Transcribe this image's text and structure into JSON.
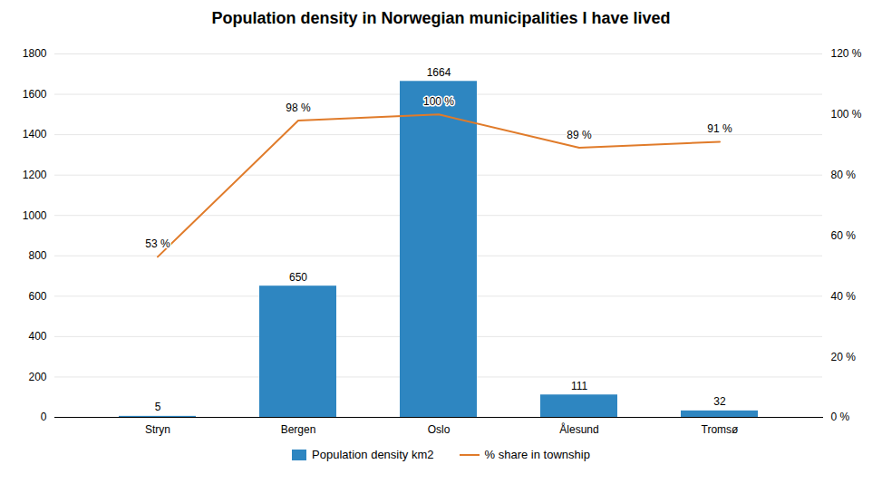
{
  "chart_data": {
    "type": "bar",
    "title": "Population density in Norwegian municipalities I have lived",
    "categories": [
      "Stryn",
      "Bergen",
      "Oslo",
      "Ålesund",
      "Tromsø"
    ],
    "series": [
      {
        "name": "Population density km2",
        "type": "bar",
        "color": "#2e86c1",
        "values": [
          5,
          650,
          1664,
          111,
          32
        ]
      },
      {
        "name": "% share in township",
        "type": "line",
        "color": "#e07b2a",
        "axis": "y2",
        "values": [
          53,
          98,
          100,
          89,
          91
        ],
        "value_labels": [
          "53 %",
          "98 %",
          "100 %",
          "89 %",
          "91 %"
        ]
      }
    ],
    "ylim": [
      0,
      1800
    ],
    "yticks": [
      0,
      200,
      400,
      600,
      800,
      1000,
      1200,
      1400,
      1600,
      1800
    ],
    "y2lim": [
      0,
      120
    ],
    "y2ticks": [
      {
        "value": 0,
        "label": "0 %"
      },
      {
        "value": 20,
        "label": "20 %"
      },
      {
        "value": 40,
        "label": "40 %"
      },
      {
        "value": 60,
        "label": "60 %"
      },
      {
        "value": 80,
        "label": "80 %"
      },
      {
        "value": 100,
        "label": "100 %"
      },
      {
        "value": 120,
        "label": "120 %"
      }
    ],
    "grid": true,
    "data_labels": true,
    "legend": "bottom"
  }
}
